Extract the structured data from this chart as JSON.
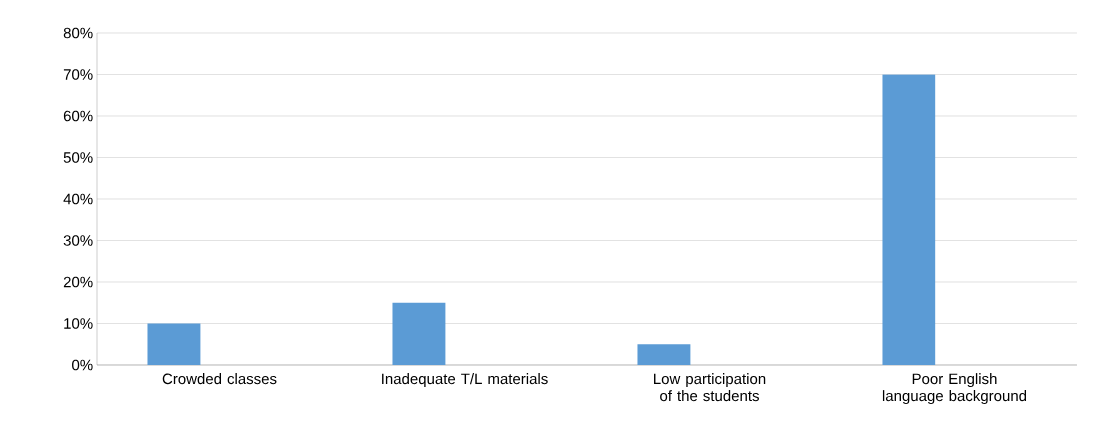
{
  "chart_data": {
    "type": "bar",
    "categories": [
      "Crowded classes",
      "Inadequate T/L materials",
      "Low participation of the students",
      "Poor English language background"
    ],
    "values": [
      10,
      15,
      5,
      70
    ],
    "color": "#5b9bd5",
    "ylim": [
      0,
      80
    ],
    "yticks": [
      {
        "value": 0,
        "label": "0%"
      },
      {
        "value": 10,
        "label": "10%"
      },
      {
        "value": 20,
        "label": "20%"
      },
      {
        "value": 30,
        "label": "30%"
      },
      {
        "value": 40,
        "label": "40%"
      },
      {
        "value": 50,
        "label": "50%"
      },
      {
        "value": 60,
        "label": "60%"
      },
      {
        "value": 70,
        "label": "70%"
      },
      {
        "value": 80,
        "label": "80%"
      }
    ],
    "grid": "y"
  }
}
